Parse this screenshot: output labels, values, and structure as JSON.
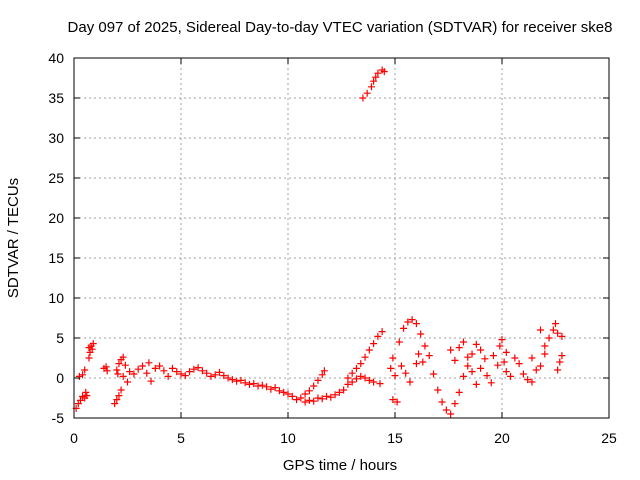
{
  "chart_data": {
    "type": "scatter",
    "title": "Day 097 of 2025, Sidereal Day-to-day VTEC variation (SDTVAR) for receiver ske8",
    "xlabel": "GPS time / hours",
    "ylabel": "SDTVAR / TECUs",
    "xlim": [
      0,
      25
    ],
    "ylim": [
      -5,
      40
    ],
    "x_ticks": [
      0,
      5,
      10,
      15,
      20,
      25
    ],
    "y_ticks": [
      -5,
      0,
      5,
      10,
      15,
      20,
      25,
      30,
      35,
      40
    ],
    "grid": true,
    "marker": "+",
    "color": "#ff0000",
    "series": [
      {
        "name": "SDTVAR",
        "points": [
          [
            0.1,
            -3.8
          ],
          [
            0.2,
            -3.2
          ],
          [
            0.3,
            -2.8
          ],
          [
            0.4,
            -2.3
          ],
          [
            0.5,
            -2.5
          ],
          [
            0.55,
            -1.8
          ],
          [
            0.6,
            -2.2
          ],
          [
            0.25,
            0.2
          ],
          [
            0.4,
            0.4
          ],
          [
            0.5,
            1.0
          ],
          [
            0.7,
            2.5
          ],
          [
            0.75,
            3.2
          ],
          [
            0.8,
            4.0
          ],
          [
            0.85,
            3.6
          ],
          [
            0.9,
            4.3
          ],
          [
            0.7,
            3.8
          ],
          [
            1.4,
            1.2
          ],
          [
            1.5,
            1.4
          ],
          [
            1.55,
            0.9
          ],
          [
            1.9,
            -3.2
          ],
          [
            2.0,
            -2.7
          ],
          [
            2.1,
            -2.2
          ],
          [
            2.05,
            0.5
          ],
          [
            2.2,
            -1.5
          ],
          [
            2.0,
            1.0
          ],
          [
            2.1,
            1.8
          ],
          [
            2.2,
            2.3
          ],
          [
            2.3,
            2.6
          ],
          [
            2.4,
            1.6
          ],
          [
            2.3,
            0.2
          ],
          [
            2.5,
            -0.5
          ],
          [
            2.6,
            0.8
          ],
          [
            2.8,
            0.5
          ],
          [
            3.0,
            1.1
          ],
          [
            3.2,
            1.5
          ],
          [
            3.4,
            0.6
          ],
          [
            3.6,
            -0.4
          ],
          [
            3.5,
            1.9
          ],
          [
            3.8,
            1.2
          ],
          [
            4.0,
            1.5
          ],
          [
            4.2,
            0.9
          ],
          [
            4.4,
            0.2
          ],
          [
            4.6,
            1.2
          ],
          [
            4.8,
            0.8
          ],
          [
            5.0,
            0.5
          ],
          [
            5.2,
            0.3
          ],
          [
            5.4,
            0.8
          ],
          [
            5.6,
            1.1
          ],
          [
            5.8,
            1.3
          ],
          [
            6.0,
            0.9
          ],
          [
            6.2,
            0.6
          ],
          [
            6.4,
            0.2
          ],
          [
            6.6,
            0.4
          ],
          [
            6.8,
            0.7
          ],
          [
            7.0,
            0.3
          ],
          [
            7.2,
            0.0
          ],
          [
            7.4,
            -0.2
          ],
          [
            7.6,
            -0.4
          ],
          [
            7.8,
            -0.3
          ],
          [
            8.0,
            -0.6
          ],
          [
            8.2,
            -0.8
          ],
          [
            8.4,
            -0.7
          ],
          [
            8.6,
            -1.0
          ],
          [
            8.8,
            -0.9
          ],
          [
            9.0,
            -1.1
          ],
          [
            9.2,
            -1.4
          ],
          [
            9.4,
            -1.2
          ],
          [
            9.6,
            -1.6
          ],
          [
            9.8,
            -1.8
          ],
          [
            10.0,
            -2.0
          ],
          [
            10.2,
            -2.3
          ],
          [
            10.4,
            -2.7
          ],
          [
            10.6,
            -2.5
          ],
          [
            10.8,
            -3.0
          ],
          [
            11.0,
            -2.8
          ],
          [
            11.2,
            -2.9
          ],
          [
            11.4,
            -2.5
          ],
          [
            11.6,
            -2.6
          ],
          [
            11.8,
            -2.3
          ],
          [
            12.0,
            -2.4
          ],
          [
            12.2,
            -2.1
          ],
          [
            12.4,
            -1.8
          ],
          [
            12.6,
            -1.5
          ],
          [
            12.8,
            -0.8
          ],
          [
            13.0,
            -0.5
          ],
          [
            13.2,
            -0.1
          ],
          [
            13.4,
            0.2
          ],
          [
            13.6,
            0.0
          ],
          [
            13.8,
            -0.3
          ],
          [
            14.0,
            -0.5
          ],
          [
            14.3,
            -0.7
          ],
          [
            10.8,
            -2.0
          ],
          [
            11.0,
            -1.6
          ],
          [
            11.2,
            -1.0
          ],
          [
            11.4,
            -0.3
          ],
          [
            11.6,
            0.4
          ],
          [
            11.7,
            0.9
          ],
          [
            12.8,
            0.0
          ],
          [
            13.0,
            0.6
          ],
          [
            13.2,
            1.2
          ],
          [
            13.4,
            1.8
          ],
          [
            13.6,
            2.6
          ],
          [
            13.8,
            3.5
          ],
          [
            14.0,
            4.3
          ],
          [
            14.2,
            5.2
          ],
          [
            14.4,
            5.8
          ],
          [
            13.5,
            35.0
          ],
          [
            13.7,
            35.6
          ],
          [
            13.9,
            36.4
          ],
          [
            14.0,
            37.1
          ],
          [
            14.1,
            37.6
          ],
          [
            14.2,
            38.1
          ],
          [
            14.4,
            38.5
          ],
          [
            14.5,
            38.3
          ],
          [
            14.9,
            -2.7
          ],
          [
            15.1,
            -3.0
          ],
          [
            14.8,
            1.2
          ],
          [
            14.9,
            2.5
          ],
          [
            15.0,
            0.3
          ],
          [
            15.2,
            4.5
          ],
          [
            15.4,
            6.2
          ],
          [
            15.6,
            7.0
          ],
          [
            15.8,
            7.3
          ],
          [
            16.0,
            6.8
          ],
          [
            16.2,
            5.5
          ],
          [
            15.3,
            1.5
          ],
          [
            15.5,
            0.6
          ],
          [
            15.7,
            -0.5
          ],
          [
            16.0,
            1.8
          ],
          [
            16.1,
            3.0
          ],
          [
            16.3,
            2.0
          ],
          [
            16.4,
            4.0
          ],
          [
            16.6,
            2.8
          ],
          [
            16.8,
            0.5
          ],
          [
            17.0,
            -1.5
          ],
          [
            17.2,
            -3.0
          ],
          [
            17.4,
            -4.0
          ],
          [
            17.6,
            -4.5
          ],
          [
            17.8,
            -3.2
          ],
          [
            18.0,
            -1.8
          ],
          [
            18.2,
            0.2
          ],
          [
            18.4,
            1.5
          ],
          [
            18.6,
            3.0
          ],
          [
            18.8,
            4.2
          ],
          [
            19.0,
            3.5
          ],
          [
            17.6,
            3.5
          ],
          [
            17.8,
            2.2
          ],
          [
            18.0,
            3.8
          ],
          [
            18.2,
            4.5
          ],
          [
            18.4,
            2.6
          ],
          [
            18.6,
            0.8
          ],
          [
            18.8,
            -0.8
          ],
          [
            19.0,
            1.2
          ],
          [
            19.2,
            2.4
          ],
          [
            19.3,
            0.3
          ],
          [
            19.5,
            -0.6
          ],
          [
            19.6,
            2.8
          ],
          [
            19.8,
            1.6
          ],
          [
            19.9,
            4.0
          ],
          [
            20.0,
            4.8
          ],
          [
            20.1,
            2.0
          ],
          [
            20.2,
            3.2
          ],
          [
            20.2,
            0.8
          ],
          [
            20.4,
            0.2
          ],
          [
            20.6,
            2.5
          ],
          [
            20.8,
            1.8
          ],
          [
            21.0,
            0.5
          ],
          [
            21.2,
            -0.2
          ],
          [
            21.4,
            -0.5
          ],
          [
            21.6,
            1.0
          ],
          [
            21.8,
            1.5
          ],
          [
            22.0,
            3.0
          ],
          [
            22.2,
            5.0
          ],
          [
            22.4,
            6.0
          ],
          [
            22.6,
            5.6
          ],
          [
            22.8,
            5.2
          ],
          [
            22.6,
            1.0
          ],
          [
            22.7,
            2.0
          ],
          [
            22.8,
            2.8
          ],
          [
            21.8,
            6.0
          ],
          [
            22.5,
            6.8
          ],
          [
            22.0,
            4.0
          ],
          [
            21.4,
            2.5
          ]
        ]
      }
    ]
  }
}
